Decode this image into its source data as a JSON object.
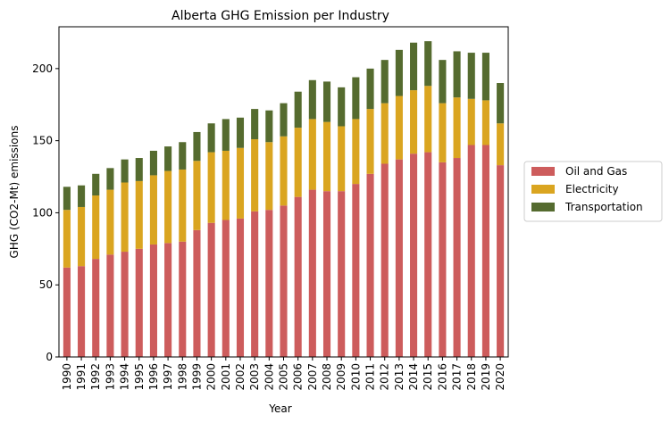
{
  "chart_data": {
    "type": "bar",
    "stacked": true,
    "title": "Alberta GHG Emission per Industry",
    "xlabel": "Year",
    "ylabel": "GHG (CO2-Mt) emissions",
    "ylim": [
      0,
      229
    ],
    "yticks": [
      0,
      50,
      100,
      150,
      200
    ],
    "grid": false,
    "legend_position": "right-center",
    "categories": [
      "1990",
      "1991",
      "1992",
      "1993",
      "1994",
      "1995",
      "1996",
      "1997",
      "1998",
      "1999",
      "2000",
      "2001",
      "2002",
      "2003",
      "2004",
      "2005",
      "2006",
      "2007",
      "2008",
      "2009",
      "2010",
      "2011",
      "2012",
      "2013",
      "2014",
      "2015",
      "2016",
      "2017",
      "2018",
      "2019",
      "2020"
    ],
    "series": [
      {
        "name": "Oil and Gas",
        "color": "#cd5c5c",
        "values": [
          62,
          63,
          68,
          71,
          73,
          75,
          78,
          79,
          80,
          88,
          93,
          95,
          96,
          101,
          102,
          105,
          111,
          116,
          115,
          115,
          120,
          127,
          134,
          137,
          141,
          142,
          135,
          138,
          147,
          147,
          133
        ]
      },
      {
        "name": "Electricity",
        "color": "#daa520",
        "values": [
          40,
          41,
          44,
          45,
          48,
          47,
          48,
          50,
          50,
          48,
          49,
          48,
          49,
          50,
          47,
          48,
          48,
          49,
          48,
          45,
          45,
          45,
          42,
          44,
          44,
          46,
          41,
          42,
          32,
          31,
          29
        ]
      },
      {
        "name": "Transportation",
        "color": "#556b2f",
        "values": [
          16,
          15,
          15,
          15,
          16,
          16,
          17,
          17,
          19,
          20,
          20,
          22,
          21,
          21,
          22,
          23,
          25,
          27,
          28,
          27,
          29,
          28,
          30,
          32,
          33,
          31,
          30,
          32,
          32,
          33,
          28
        ]
      }
    ]
  }
}
